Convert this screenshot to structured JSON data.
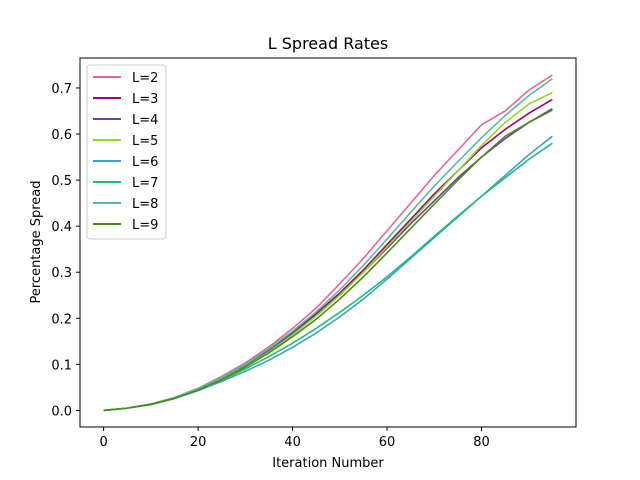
{
  "chart_data": {
    "type": "line",
    "title": "L Spread Rates",
    "xlabel": "Iteration Number",
    "ylabel": "Percentage Spread",
    "xlim": [
      -5,
      100
    ],
    "ylim": [
      -0.036,
      0.765
    ],
    "xticks": [
      0,
      20,
      40,
      60,
      80
    ],
    "yticks": [
      0.0,
      0.1,
      0.2,
      0.3,
      0.4,
      0.5,
      0.6,
      0.7
    ],
    "ytick_labels": [
      "0.0",
      "0.1",
      "0.2",
      "0.3",
      "0.4",
      "0.5",
      "0.6",
      "0.7"
    ],
    "xtick_labels": [
      "0",
      "20",
      "40",
      "60",
      "80"
    ],
    "legend_position": "top-left",
    "grid": false,
    "x": [
      0,
      5,
      10,
      15,
      20,
      25,
      30,
      35,
      40,
      45,
      50,
      55,
      60,
      65,
      70,
      75,
      80,
      85,
      90,
      95
    ],
    "series": [
      {
        "name": "L=2",
        "color": "#f0609a",
        "values": [
          0.0,
          0.005,
          0.014,
          0.028,
          0.048,
          0.074,
          0.103,
          0.138,
          0.178,
          0.222,
          0.275,
          0.33,
          0.39,
          0.45,
          0.51,
          0.565,
          0.62,
          0.65,
          0.695,
          0.728
        ]
      },
      {
        "name": "L=3",
        "color": "#a0007f",
        "values": [
          0.0,
          0.005,
          0.013,
          0.027,
          0.046,
          0.07,
          0.099,
          0.132,
          0.17,
          0.21,
          0.255,
          0.305,
          0.36,
          0.415,
          0.47,
          0.52,
          0.57,
          0.61,
          0.645,
          0.675
        ]
      },
      {
        "name": "L=4",
        "color": "#6a3fb0",
        "values": [
          0.0,
          0.005,
          0.013,
          0.027,
          0.046,
          0.07,
          0.098,
          0.13,
          0.167,
          0.207,
          0.252,
          0.3,
          0.352,
          0.405,
          0.455,
          0.505,
          0.55,
          0.59,
          0.625,
          0.655
        ]
      },
      {
        "name": "L=5",
        "color": "#8fdc1a",
        "values": [
          0.0,
          0.005,
          0.013,
          0.026,
          0.045,
          0.068,
          0.095,
          0.127,
          0.164,
          0.205,
          0.25,
          0.3,
          0.355,
          0.41,
          0.465,
          0.52,
          0.575,
          0.625,
          0.665,
          0.69
        ]
      },
      {
        "name": "L=6",
        "color": "#3b9ed8",
        "values": [
          0.0,
          0.005,
          0.013,
          0.026,
          0.043,
          0.063,
          0.085,
          0.109,
          0.137,
          0.168,
          0.203,
          0.242,
          0.285,
          0.33,
          0.375,
          0.42,
          0.465,
          0.51,
          0.555,
          0.595
        ]
      },
      {
        "name": "L=7",
        "color": "#1ec06a",
        "values": [
          0.0,
          0.005,
          0.013,
          0.026,
          0.044,
          0.066,
          0.09,
          0.117,
          0.146,
          0.178,
          0.213,
          0.25,
          0.29,
          0.333,
          0.378,
          0.422,
          0.465,
          0.505,
          0.545,
          0.58
        ]
      },
      {
        "name": "L=8",
        "color": "#56bca0",
        "values": [
          0.0,
          0.005,
          0.014,
          0.028,
          0.047,
          0.072,
          0.1,
          0.134,
          0.172,
          0.214,
          0.262,
          0.315,
          0.372,
          0.43,
          0.487,
          0.54,
          0.592,
          0.64,
          0.683,
          0.72
        ]
      },
      {
        "name": "L=9",
        "color": "#4a8c12",
        "values": [
          0.0,
          0.005,
          0.013,
          0.026,
          0.044,
          0.067,
          0.094,
          0.125,
          0.16,
          0.198,
          0.242,
          0.29,
          0.342,
          0.395,
          0.448,
          0.5,
          0.55,
          0.595,
          0.625,
          0.652
        ]
      }
    ]
  }
}
